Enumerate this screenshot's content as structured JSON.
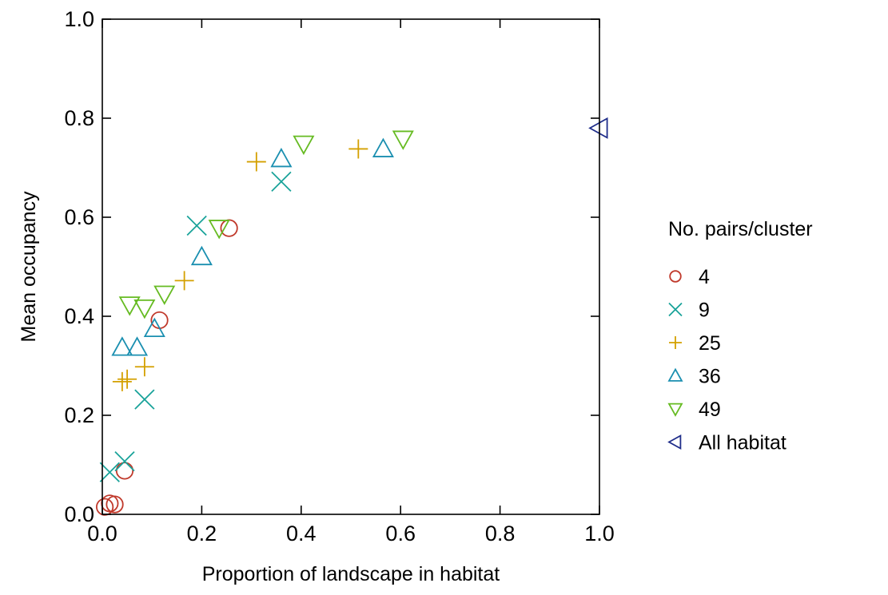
{
  "chart_data": {
    "type": "scatter",
    "xlabel": "Proportion of landscape in habitat",
    "ylabel": "Mean occupancy",
    "xlim": [
      0,
      1
    ],
    "ylim": [
      0,
      1
    ],
    "xticks": [
      "0.0",
      "0.2",
      "0.4",
      "0.6",
      "0.8",
      "1.0"
    ],
    "yticks": [
      "0.0",
      "0.2",
      "0.4",
      "0.6",
      "0.8",
      "1.0"
    ],
    "grid": false,
    "legend": {
      "title": "No. pairs/cluster",
      "placement": "right"
    },
    "series": [
      {
        "name": "4",
        "marker": "circle",
        "color": "#c0392b",
        "points": [
          [
            0.005,
            0.015
          ],
          [
            0.015,
            0.022
          ],
          [
            0.025,
            0.02
          ],
          [
            0.045,
            0.088
          ],
          [
            0.115,
            0.392
          ],
          [
            0.255,
            0.578
          ]
        ]
      },
      {
        "name": "9",
        "marker": "x",
        "color": "#1aa39a",
        "points": [
          [
            0.015,
            0.085
          ],
          [
            0.045,
            0.107
          ],
          [
            0.085,
            0.232
          ],
          [
            0.19,
            0.583
          ],
          [
            0.36,
            0.672
          ]
        ]
      },
      {
        "name": "25",
        "marker": "plus",
        "color": "#d4a000",
        "points": [
          [
            0.04,
            0.268
          ],
          [
            0.05,
            0.273
          ],
          [
            0.085,
            0.298
          ],
          [
            0.165,
            0.472
          ],
          [
            0.31,
            0.712
          ],
          [
            0.515,
            0.738
          ]
        ]
      },
      {
        "name": "36",
        "marker": "triangle-up",
        "color": "#1a8fb0",
        "points": [
          [
            0.04,
            0.337
          ],
          [
            0.07,
            0.337
          ],
          [
            0.105,
            0.375
          ],
          [
            0.2,
            0.52
          ],
          [
            0.36,
            0.718
          ],
          [
            0.565,
            0.738
          ]
        ]
      },
      {
        "name": "49",
        "marker": "triangle-down",
        "color": "#66bb22",
        "points": [
          [
            0.055,
            0.423
          ],
          [
            0.085,
            0.417
          ],
          [
            0.125,
            0.445
          ],
          [
            0.235,
            0.578
          ],
          [
            0.405,
            0.748
          ],
          [
            0.605,
            0.758
          ]
        ]
      },
      {
        "name": "All habitat",
        "marker": "triangle-left",
        "color": "#1f2d8a",
        "points": [
          [
            1.0,
            0.78
          ]
        ]
      }
    ]
  }
}
